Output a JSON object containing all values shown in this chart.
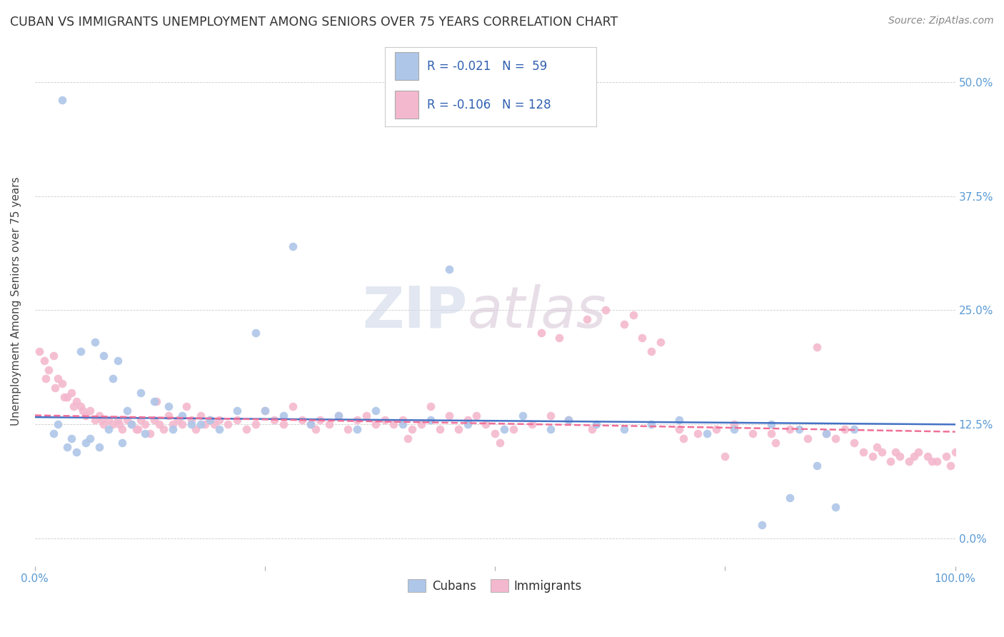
{
  "title": "CUBAN VS IMMIGRANTS UNEMPLOYMENT AMONG SENIORS OVER 75 YEARS CORRELATION CHART",
  "source": "Source: ZipAtlas.com",
  "ylabel": "Unemployment Among Seniors over 75 years",
  "yticks": [
    "0.0%",
    "12.5%",
    "25.0%",
    "37.5%",
    "50.0%"
  ],
  "ytick_vals": [
    0.0,
    12.5,
    25.0,
    37.5,
    50.0
  ],
  "xlim": [
    0.0,
    100.0
  ],
  "ylim": [
    -3.0,
    55.0
  ],
  "cuban_color": "#aec6e8",
  "immigrant_color": "#f4b8ce",
  "cuban_line_color": "#4472c4",
  "immigrant_line_color": "#f07099",
  "cuban_R": -0.021,
  "cuban_N": 59,
  "immigrant_R": -0.106,
  "immigrant_N": 128,
  "legend_label_cuban": "Cubans",
  "legend_label_immigrant": "Immigrants",
  "watermark_zip": "ZIP",
  "watermark_atlas": "atlas",
  "cuban_intercept": 13.3,
  "cuban_slope": -0.008,
  "immigrant_intercept": 13.5,
  "immigrant_slope": -0.018,
  "cuban_x": [
    3.0,
    5.0,
    6.5,
    7.5,
    8.5,
    9.0,
    10.0,
    11.5,
    13.0,
    14.5,
    16.0,
    18.0,
    20.0,
    22.0,
    25.0,
    27.0,
    30.0,
    33.0,
    37.0,
    40.0,
    43.0,
    47.0,
    51.0,
    53.0,
    56.0,
    58.0,
    61.0,
    64.0,
    67.0,
    70.0,
    73.0,
    76.0,
    80.0,
    83.0,
    86.0,
    89.0,
    2.0,
    2.5,
    3.5,
    4.0,
    4.5,
    5.5,
    6.0,
    7.0,
    8.0,
    9.5,
    10.5,
    12.0,
    15.0,
    17.0,
    19.0,
    24.0,
    28.0,
    35.0,
    45.0,
    85.0,
    87.0,
    82.0,
    79.0
  ],
  "cuban_y": [
    48.0,
    20.5,
    21.5,
    20.0,
    17.5,
    19.5,
    14.0,
    16.0,
    15.0,
    14.5,
    13.5,
    12.5,
    12.0,
    14.0,
    14.0,
    13.5,
    12.5,
    13.5,
    14.0,
    12.5,
    13.0,
    12.5,
    12.0,
    13.5,
    12.0,
    13.0,
    12.5,
    12.0,
    12.5,
    13.0,
    11.5,
    12.0,
    12.5,
    12.0,
    11.5,
    12.0,
    11.5,
    12.5,
    10.0,
    11.0,
    9.5,
    10.5,
    11.0,
    10.0,
    12.0,
    10.5,
    12.5,
    11.5,
    12.0,
    12.5,
    13.0,
    22.5,
    32.0,
    12.0,
    29.5,
    8.0,
    3.5,
    4.5,
    1.5
  ],
  "immigrant_x": [
    0.5,
    1.0,
    1.5,
    2.0,
    2.5,
    3.0,
    3.5,
    4.0,
    4.5,
    5.0,
    5.5,
    6.0,
    6.5,
    7.0,
    7.5,
    8.0,
    8.5,
    9.0,
    9.5,
    10.0,
    10.5,
    11.0,
    11.5,
    12.0,
    12.5,
    13.0,
    13.5,
    14.0,
    14.5,
    15.0,
    15.5,
    16.0,
    16.5,
    17.0,
    17.5,
    18.0,
    18.5,
    19.0,
    19.5,
    20.0,
    21.0,
    22.0,
    23.0,
    24.0,
    25.0,
    26.0,
    27.0,
    28.0,
    29.0,
    30.0,
    31.0,
    32.0,
    33.0,
    34.0,
    35.0,
    36.0,
    37.0,
    38.0,
    39.0,
    40.0,
    41.0,
    42.0,
    43.0,
    44.0,
    45.0,
    46.0,
    47.0,
    48.0,
    49.0,
    50.0,
    52.0,
    54.0,
    56.0,
    58.0,
    60.0,
    62.0,
    64.0,
    66.0,
    68.0,
    70.0,
    72.0,
    74.0,
    76.0,
    78.0,
    80.0,
    82.0,
    84.0,
    86.0,
    88.0,
    90.0,
    91.0,
    92.0,
    93.0,
    94.0,
    95.0,
    96.0,
    97.0,
    98.0,
    99.0,
    100.0,
    1.2,
    2.2,
    3.2,
    4.2,
    5.2,
    7.2,
    9.2,
    11.2,
    13.2,
    55.0,
    57.0,
    65.0,
    67.0,
    75.0,
    85.0,
    87.0,
    89.0,
    91.5,
    93.5,
    95.5,
    97.5,
    99.5,
    30.5,
    40.5,
    50.5,
    60.5,
    70.5,
    80.5
  ],
  "immigrant_y": [
    20.5,
    19.5,
    18.5,
    20.0,
    17.5,
    17.0,
    15.5,
    16.0,
    15.0,
    14.5,
    13.5,
    14.0,
    13.0,
    13.5,
    12.5,
    13.0,
    12.5,
    13.0,
    12.0,
    13.0,
    12.5,
    12.0,
    13.0,
    12.5,
    11.5,
    13.0,
    12.5,
    12.0,
    13.5,
    12.5,
    13.0,
    12.5,
    14.5,
    13.0,
    12.0,
    13.5,
    12.5,
    13.0,
    12.5,
    13.0,
    12.5,
    13.0,
    12.0,
    12.5,
    14.0,
    13.0,
    12.5,
    14.5,
    13.0,
    12.5,
    13.0,
    12.5,
    13.5,
    12.0,
    13.0,
    13.5,
    12.5,
    13.0,
    12.5,
    13.0,
    12.0,
    12.5,
    14.5,
    12.0,
    13.5,
    12.0,
    13.0,
    13.5,
    12.5,
    11.5,
    12.0,
    12.5,
    13.5,
    13.0,
    24.0,
    25.0,
    23.5,
    22.0,
    21.5,
    12.0,
    11.5,
    12.0,
    12.5,
    11.5,
    11.5,
    12.0,
    11.0,
    11.5,
    12.0,
    9.5,
    9.0,
    9.5,
    8.5,
    9.0,
    8.5,
    9.5,
    9.0,
    8.5,
    9.0,
    9.5,
    17.5,
    16.5,
    15.5,
    14.5,
    14.0,
    13.0,
    12.5,
    12.0,
    15.0,
    22.5,
    22.0,
    24.5,
    20.5,
    9.0,
    21.0,
    11.0,
    10.5,
    10.0,
    9.5,
    9.0,
    8.5,
    8.0,
    12.0,
    11.0,
    10.5,
    12.0,
    11.0,
    10.5
  ]
}
